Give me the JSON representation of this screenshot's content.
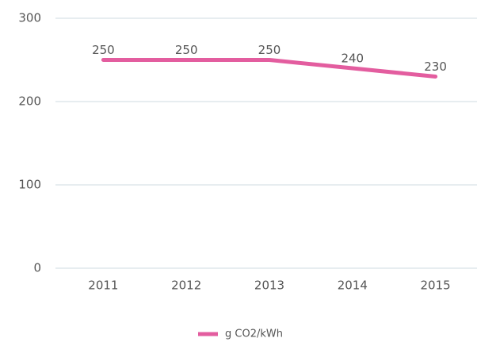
{
  "chart_data": {
    "type": "line",
    "categories": [
      "2011",
      "2012",
      "2013",
      "2014",
      "2015"
    ],
    "series": [
      {
        "name": "g CO2/kWh",
        "color": "#e35d9f",
        "values": [
          250,
          250,
          250,
          240,
          230
        ]
      }
    ],
    "ylim": [
      0,
      300
    ],
    "yticks": [
      0,
      100,
      200,
      300
    ],
    "grid": true,
    "legend": "bottom",
    "data_labels": true
  }
}
